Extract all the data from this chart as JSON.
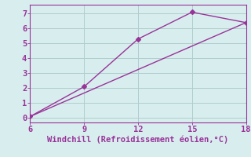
{
  "line1_x": [
    6,
    9,
    12,
    15,
    18
  ],
  "line1_y": [
    0.1,
    2.1,
    5.3,
    7.1,
    6.4
  ],
  "line2_x": [
    6,
    18
  ],
  "line2_y": [
    0.1,
    6.4
  ],
  "color": "#993399",
  "xlabel": "Windchill (Refroidissement éolien,°C)",
  "xlim": [
    6,
    18
  ],
  "ylim": [
    -0.3,
    7.6
  ],
  "xticks": [
    6,
    9,
    12,
    15,
    18
  ],
  "yticks": [
    0,
    1,
    2,
    3,
    4,
    5,
    6,
    7
  ],
  "bg_color": "#d8eeee",
  "grid_color": "#b0cccc",
  "marker": "D",
  "marker_size": 3,
  "line_width": 1.0,
  "xlabel_fontsize": 7.5,
  "tick_fontsize": 7.5
}
